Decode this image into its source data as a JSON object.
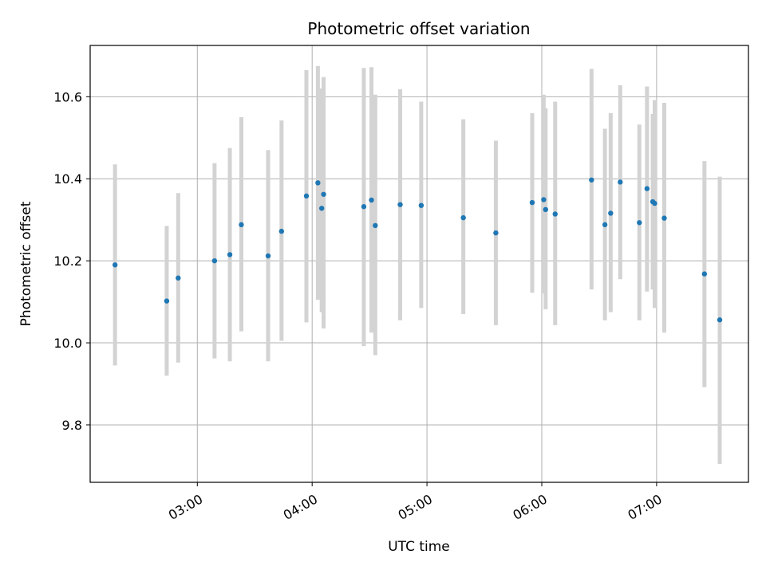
{
  "chart_data": {
    "type": "scatter",
    "title": "Photometric offset variation",
    "xlabel": "UTC time",
    "ylabel": "Photometric offset",
    "x_ticks": [
      "03:00",
      "04:00",
      "05:00",
      "06:00",
      "07:00"
    ],
    "y_ticks": [
      "9.8",
      "10.0",
      "10.2",
      "10.4",
      "10.6"
    ],
    "xlim": [
      "02:04",
      "07:48"
    ],
    "ylim": [
      9.66,
      10.725
    ],
    "grid": true,
    "colors": {
      "points": "#1f77b4",
      "error_bars": "#d3d3d3",
      "grid": "#b0b0b0"
    },
    "series": [
      {
        "points": [
          {
            "x": "02:17",
            "y": 10.19,
            "ymin": 9.945,
            "ymax": 10.435
          },
          {
            "x": "02:44",
            "y": 10.102,
            "ymin": 9.92,
            "ymax": 10.285
          },
          {
            "x": "02:50",
            "y": 10.158,
            "ymin": 9.952,
            "ymax": 10.365
          },
          {
            "x": "03:09",
            "y": 10.2,
            "ymin": 9.962,
            "ymax": 10.438
          },
          {
            "x": "03:17",
            "y": 10.215,
            "ymin": 9.955,
            "ymax": 10.475
          },
          {
            "x": "03:23",
            "y": 10.288,
            "ymin": 10.028,
            "ymax": 10.55
          },
          {
            "x": "03:37",
            "y": 10.212,
            "ymin": 9.955,
            "ymax": 10.47
          },
          {
            "x": "03:44",
            "y": 10.272,
            "ymin": 10.005,
            "ymax": 10.542
          },
          {
            "x": "03:57",
            "y": 10.358,
            "ymin": 10.05,
            "ymax": 10.665
          },
          {
            "x": "04:03",
            "y": 10.39,
            "ymin": 10.105,
            "ymax": 10.675
          },
          {
            "x": "04:05",
            "y": 10.328,
            "ymin": 10.075,
            "ymax": 10.62
          },
          {
            "x": "04:06",
            "y": 10.362,
            "ymin": 10.035,
            "ymax": 10.648
          },
          {
            "x": "04:27",
            "y": 10.332,
            "ymin": 9.992,
            "ymax": 10.67
          },
          {
            "x": "04:31",
            "y": 10.348,
            "ymin": 10.025,
            "ymax": 10.672
          },
          {
            "x": "04:33",
            "y": 10.286,
            "ymin": 9.97,
            "ymax": 10.605
          },
          {
            "x": "04:46",
            "y": 10.337,
            "ymin": 10.055,
            "ymax": 10.618
          },
          {
            "x": "04:57",
            "y": 10.335,
            "ymin": 10.085,
            "ymax": 10.588
          },
          {
            "x": "05:19",
            "y": 10.305,
            "ymin": 10.07,
            "ymax": 10.545
          },
          {
            "x": "05:36",
            "y": 10.268,
            "ymin": 10.043,
            "ymax": 10.493
          },
          {
            "x": "05:55",
            "y": 10.342,
            "ymin": 10.122,
            "ymax": 10.56
          },
          {
            "x": "06:01",
            "y": 10.349,
            "ymin": 10.12,
            "ymax": 10.605
          },
          {
            "x": "06:02",
            "y": 10.325,
            "ymin": 10.082,
            "ymax": 10.572
          },
          {
            "x": "06:07",
            "y": 10.314,
            "ymin": 10.043,
            "ymax": 10.588
          },
          {
            "x": "06:26",
            "y": 10.397,
            "ymin": 10.13,
            "ymax": 10.668
          },
          {
            "x": "06:33",
            "y": 10.288,
            "ymin": 10.055,
            "ymax": 10.522
          },
          {
            "x": "06:36",
            "y": 10.316,
            "ymin": 10.075,
            "ymax": 10.56
          },
          {
            "x": "06:41",
            "y": 10.392,
            "ymin": 10.155,
            "ymax": 10.628
          },
          {
            "x": "06:51",
            "y": 10.293,
            "ymin": 10.055,
            "ymax": 10.532
          },
          {
            "x": "06:55",
            "y": 10.376,
            "ymin": 10.125,
            "ymax": 10.625
          },
          {
            "x": "06:58",
            "y": 10.344,
            "ymin": 10.13,
            "ymax": 10.558
          },
          {
            "x": "06:59",
            "y": 10.34,
            "ymin": 10.085,
            "ymax": 10.592
          },
          {
            "x": "07:04",
            "y": 10.304,
            "ymin": 10.025,
            "ymax": 10.585
          },
          {
            "x": "07:25",
            "y": 10.168,
            "ymin": 9.892,
            "ymax": 10.443
          },
          {
            "x": "07:33",
            "y": 10.056,
            "ymin": 9.705,
            "ymax": 10.405
          }
        ]
      }
    ]
  }
}
